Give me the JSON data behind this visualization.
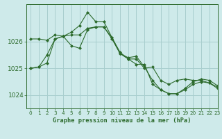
{
  "title": "Graphe pression niveau de la mer (hPa)",
  "bg_color": "#ceeaea",
  "plot_bg_color": "#ceeaea",
  "grid_color": "#a8cece",
  "line_color": "#2d6b2d",
  "marker_color": "#2d6b2d",
  "xlim": [
    -0.5,
    23
  ],
  "ylim": [
    1023.5,
    1027.4
  ],
  "yticks": [
    1024,
    1025,
    1026
  ],
  "xticks": [
    0,
    1,
    2,
    3,
    4,
    5,
    6,
    7,
    8,
    9,
    10,
    11,
    12,
    13,
    14,
    15,
    16,
    17,
    18,
    19,
    20,
    21,
    22,
    23
  ],
  "series1": [
    1025.0,
    1025.05,
    1025.5,
    1026.1,
    1026.2,
    1026.35,
    1026.6,
    1027.1,
    1026.75,
    1026.75,
    1026.15,
    1025.55,
    1025.4,
    1025.45,
    1025.05,
    1024.55,
    1024.2,
    1024.05,
    1024.05,
    1024.25,
    1024.5,
    1024.6,
    1024.55,
    1024.35
  ],
  "series2": [
    1026.1,
    1026.1,
    1026.05,
    1026.25,
    1026.2,
    1026.25,
    1026.25,
    1026.5,
    1026.55,
    1026.55,
    1026.1,
    1025.55,
    1025.35,
    1025.35,
    1025.0,
    1025.05,
    1024.55,
    1024.4,
    1024.55,
    1024.6,
    1024.55,
    1024.55,
    1024.45,
    1024.3
  ],
  "series3": [
    1025.0,
    1025.05,
    1025.2,
    1026.1,
    1026.2,
    1025.85,
    1025.75,
    1026.45,
    1026.55,
    1026.55,
    1026.15,
    1025.6,
    1025.35,
    1025.15,
    1025.15,
    1024.4,
    1024.2,
    1024.05,
    1024.05,
    1024.2,
    1024.4,
    1024.5,
    1024.45,
    1024.25
  ]
}
